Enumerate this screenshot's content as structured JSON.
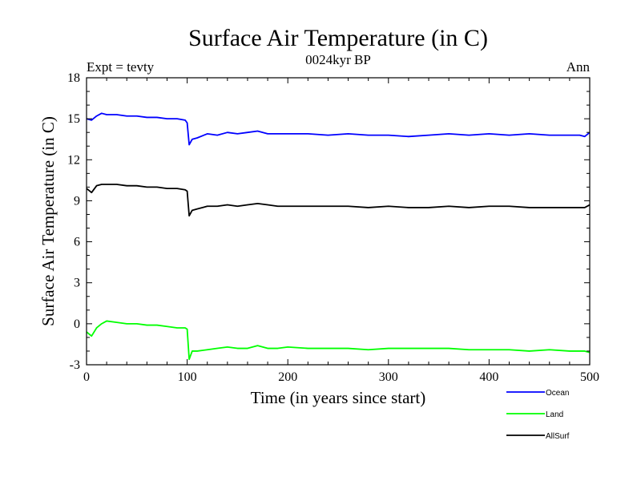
{
  "chart_data": {
    "type": "line",
    "title": "Surface Air Temperature (in C)",
    "subtitle": "0024kyr BP",
    "left_note": "Expt = tevty",
    "right_note": "Ann",
    "xlabel": "Time (in years since start)",
    "ylabel": "Surface Air Temperature (in C)",
    "xlim": [
      0,
      500
    ],
    "ylim": [
      -3,
      18
    ],
    "xticks": [
      0,
      100,
      200,
      300,
      400,
      500
    ],
    "yticks": [
      -3,
      0,
      3,
      6,
      9,
      12,
      15,
      18
    ],
    "grid": false,
    "legend_position": "bottom-right",
    "series": [
      {
        "name": "Ocean",
        "color": "#0000ff",
        "x": [
          0,
          5,
          10,
          15,
          20,
          30,
          40,
          50,
          60,
          70,
          80,
          90,
          98,
          100,
          102,
          105,
          110,
          120,
          130,
          140,
          150,
          160,
          170,
          180,
          190,
          200,
          220,
          240,
          260,
          280,
          300,
          320,
          340,
          360,
          380,
          400,
          420,
          440,
          460,
          480,
          490,
          495,
          500
        ],
        "values": [
          15.0,
          14.9,
          15.2,
          15.4,
          15.3,
          15.3,
          15.2,
          15.2,
          15.1,
          15.1,
          15.0,
          15.0,
          14.9,
          14.7,
          13.1,
          13.5,
          13.6,
          13.9,
          13.8,
          14.0,
          13.9,
          14.0,
          14.1,
          13.9,
          13.9,
          13.9,
          13.9,
          13.8,
          13.9,
          13.8,
          13.8,
          13.7,
          13.8,
          13.9,
          13.8,
          13.9,
          13.8,
          13.9,
          13.8,
          13.8,
          13.8,
          13.7,
          14.0
        ]
      },
      {
        "name": "Land",
        "color": "#00ff00",
        "x": [
          0,
          5,
          10,
          15,
          20,
          30,
          40,
          50,
          60,
          70,
          80,
          90,
          98,
          100,
          102,
          105,
          110,
          120,
          130,
          140,
          150,
          160,
          170,
          180,
          190,
          200,
          220,
          240,
          260,
          280,
          300,
          320,
          340,
          360,
          380,
          400,
          420,
          440,
          460,
          480,
          490,
          495,
          500
        ],
        "values": [
          -0.6,
          -0.9,
          -0.3,
          0.0,
          0.2,
          0.1,
          0.0,
          0.0,
          -0.1,
          -0.1,
          -0.2,
          -0.3,
          -0.3,
          -0.4,
          -2.6,
          -2.0,
          -2.0,
          -1.9,
          -1.8,
          -1.7,
          -1.8,
          -1.8,
          -1.6,
          -1.8,
          -1.8,
          -1.7,
          -1.8,
          -1.8,
          -1.8,
          -1.9,
          -1.8,
          -1.8,
          -1.8,
          -1.8,
          -1.9,
          -1.9,
          -1.9,
          -2.0,
          -1.9,
          -2.0,
          -2.0,
          -2.0,
          -2.1
        ]
      },
      {
        "name": "AllSurf",
        "color": "#000000",
        "x": [
          0,
          5,
          10,
          15,
          20,
          30,
          40,
          50,
          60,
          70,
          80,
          90,
          98,
          100,
          102,
          105,
          110,
          120,
          130,
          140,
          150,
          160,
          170,
          180,
          190,
          200,
          220,
          240,
          260,
          280,
          300,
          320,
          340,
          360,
          380,
          400,
          420,
          440,
          460,
          480,
          490,
          495,
          500
        ],
        "values": [
          9.9,
          9.6,
          10.1,
          10.2,
          10.2,
          10.2,
          10.1,
          10.1,
          10.0,
          10.0,
          9.9,
          9.9,
          9.8,
          9.7,
          7.9,
          8.3,
          8.4,
          8.6,
          8.6,
          8.7,
          8.6,
          8.7,
          8.8,
          8.7,
          8.6,
          8.6,
          8.6,
          8.6,
          8.6,
          8.5,
          8.6,
          8.5,
          8.5,
          8.6,
          8.5,
          8.6,
          8.6,
          8.5,
          8.5,
          8.5,
          8.5,
          8.5,
          8.7
        ]
      }
    ]
  }
}
